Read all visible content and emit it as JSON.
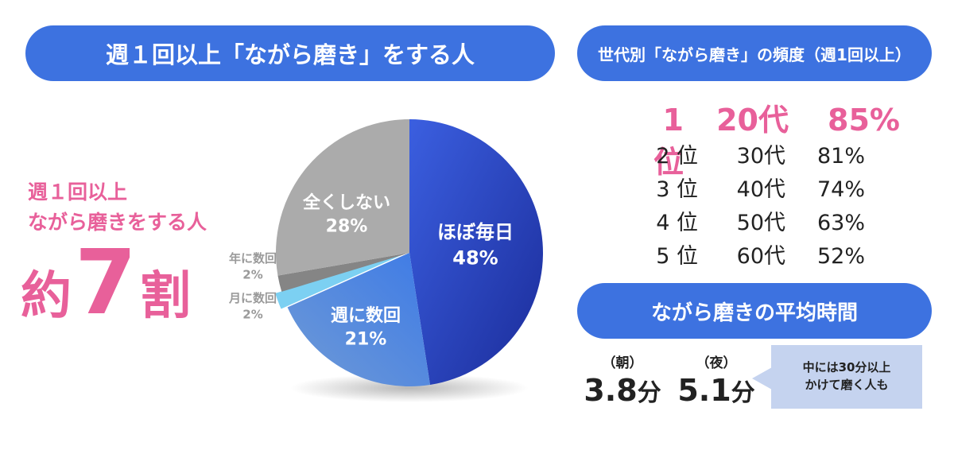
{
  "main_banner": "週１回以上「ながら磨き」をする人",
  "summary": {
    "line1": "週１回以上",
    "line2": "ながら磨きをする人",
    "prefix": "約",
    "number": "7",
    "suffix": "割"
  },
  "chart_data": {
    "type": "pie",
    "title": "週１回以上「ながら磨き」をする人",
    "slices": [
      {
        "label": "ほぼ毎日",
        "value": 48,
        "value_label": "48%",
        "color": "#2a45c0"
      },
      {
        "label": "週に数回",
        "value": 21,
        "value_label": "21%",
        "color": "#4f86d8"
      },
      {
        "label": "月に数回",
        "value": 2,
        "value_label": "2%",
        "color": "#7cd0f2"
      },
      {
        "label": "年に数回",
        "value": 2,
        "value_label": "2%",
        "color": "#858585"
      },
      {
        "label": "全くしない",
        "value": 28,
        "value_label": "28%",
        "color": "#ababab"
      }
    ],
    "legend": "none"
  },
  "ranking": {
    "title": "世代別「ながら磨き」の頻度（週1回以上）",
    "rows": [
      {
        "rank": "1位",
        "age": "20代",
        "pct": "85%"
      },
      {
        "rank": "2 位",
        "age": "30代",
        "pct": "81%"
      },
      {
        "rank": "3 位",
        "age": "40代",
        "pct": "74%"
      },
      {
        "rank": "4 位",
        "age": "50代",
        "pct": "63%"
      },
      {
        "rank": "5 位",
        "age": "60代",
        "pct": "52%"
      }
    ]
  },
  "time": {
    "title": "ながら磨きの平均時間",
    "morning_label": "（朝）",
    "morning_value": "3.8",
    "night_label": "（夜）",
    "night_value": "5.1",
    "unit": "分",
    "callout_line1": "中には30分以上",
    "callout_line2": "かけて磨く人も"
  },
  "colors": {
    "banner": "#3d72e0",
    "accent_pink": "#e8609a",
    "callout_bg": "#c5d3ef"
  }
}
